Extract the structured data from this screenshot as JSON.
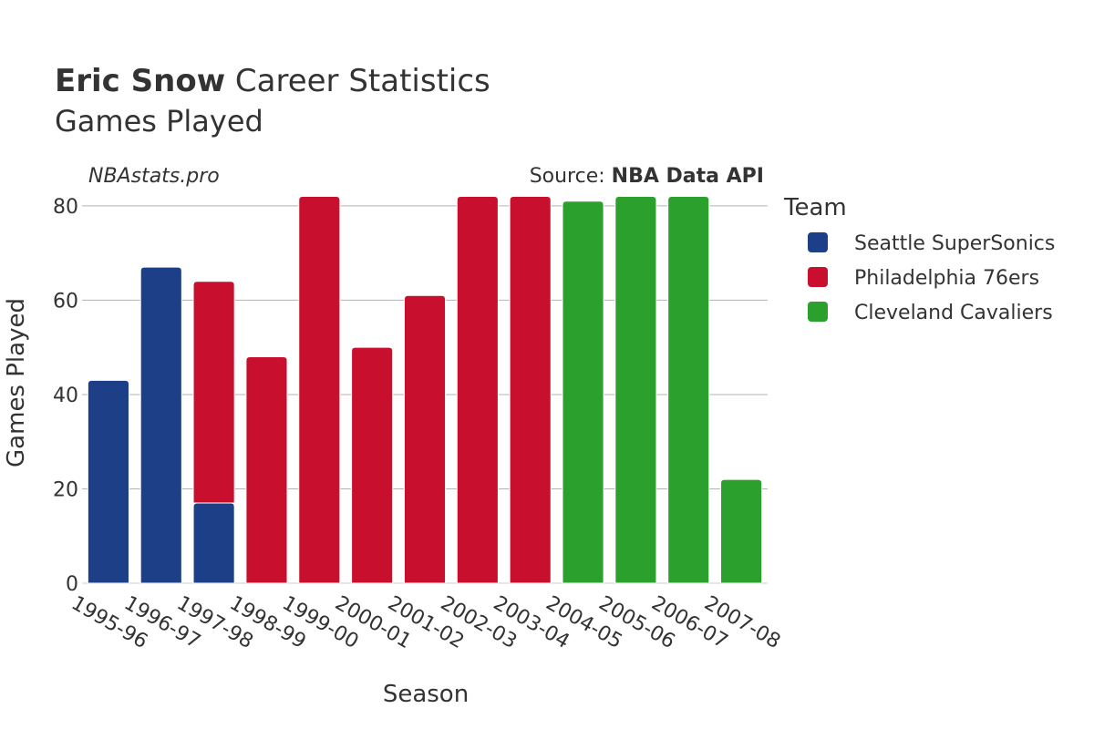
{
  "header": {
    "player_name": "Eric Snow",
    "title_rest": " Career Statistics",
    "subtitle": "Games Played",
    "watermark": "NBAstats.pro",
    "source_prefix": "Source: ",
    "source_name": "NBA Data API"
  },
  "legend": {
    "title": "Team",
    "items": [
      {
        "label": "Seattle SuperSonics",
        "color": "#1c3f87"
      },
      {
        "label": "Philadelphia 76ers",
        "color": "#c8102e"
      },
      {
        "label": "Cleveland Cavaliers",
        "color": "#2ca02c"
      }
    ]
  },
  "chart_data": {
    "type": "bar",
    "stacked": true,
    "xlabel": "Season",
    "ylabel": "Games Played",
    "ylim": [
      0,
      85
    ],
    "yticks": [
      0,
      20,
      40,
      60,
      80
    ],
    "grid": true,
    "legend_position": "right",
    "categories": [
      "1995-96",
      "1996-97",
      "1997-98",
      "1998-99",
      "1999-00",
      "2000-01",
      "2001-02",
      "2002-03",
      "2003-04",
      "2004-05",
      "2005-06",
      "2006-07",
      "2007-08"
    ],
    "series": [
      {
        "name": "Seattle SuperSonics",
        "color": "#1c3f87",
        "values": [
          43,
          67,
          17,
          null,
          null,
          null,
          null,
          null,
          null,
          null,
          null,
          null,
          null
        ]
      },
      {
        "name": "Philadelphia 76ers",
        "color": "#c8102e",
        "values": [
          null,
          null,
          47,
          48,
          82,
          50,
          61,
          82,
          82,
          null,
          null,
          null,
          null
        ]
      },
      {
        "name": "Cleveland Cavaliers",
        "color": "#2ca02c",
        "values": [
          null,
          null,
          null,
          null,
          null,
          null,
          null,
          null,
          null,
          81,
          82,
          82,
          22
        ]
      }
    ]
  }
}
